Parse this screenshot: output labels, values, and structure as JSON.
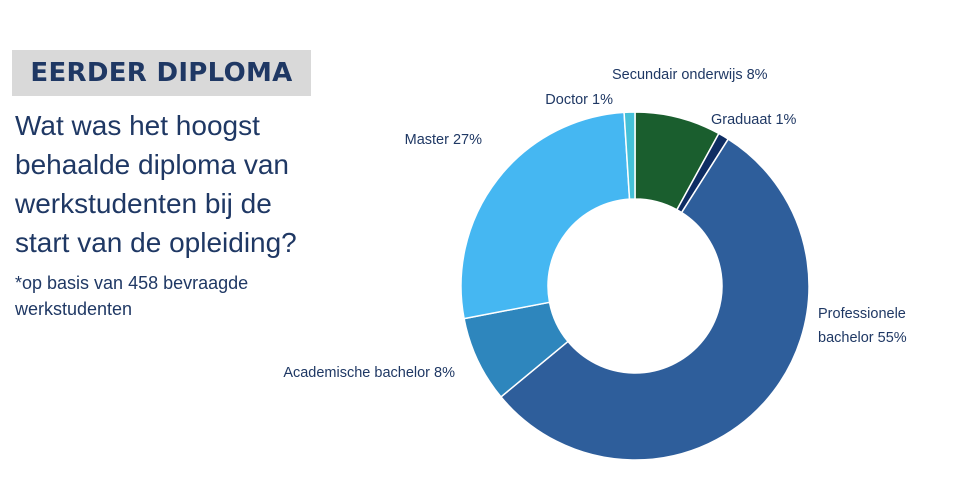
{
  "heading": "EERDER DIPLOMA",
  "question": "Wat was het hoogst behaalde diploma van werkstudenten bij de start van de opleiding?",
  "note": "*op basis van 458 bevraagde werkstudenten",
  "chart_data": {
    "type": "pie",
    "donut": true,
    "title": "",
    "slices": [
      {
        "label": "Secundair onderwijs 8%",
        "value": 8,
        "color": "#1a5e2e"
      },
      {
        "label": "Graduaat 1%",
        "value": 1,
        "color": "#0f2d63"
      },
      {
        "label": "Professionele bachelor 55%",
        "value": 55,
        "color": "#2e5e9b"
      },
      {
        "label": "Academische bachelor 8%",
        "value": 8,
        "color": "#2e86bd"
      },
      {
        "label": "Master 27%",
        "value": 27,
        "color": "#45b7f2"
      },
      {
        "label": "Doctor 1%",
        "value": 1,
        "color": "#45c0d8"
      }
    ]
  }
}
